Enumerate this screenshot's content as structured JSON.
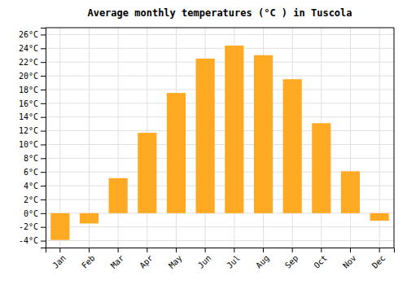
{
  "chart_data": {
    "type": "bar",
    "title": "Average monthly temperatures (°C ) in Tuscola",
    "categories": [
      "Jan",
      "Feb",
      "Mar",
      "Apr",
      "May",
      "Jun",
      "Jul",
      "Aug",
      "Sep",
      "Oct",
      "Nov",
      "Dec"
    ],
    "values": [
      -3.9,
      -1.5,
      5.1,
      11.7,
      17.5,
      22.5,
      24.4,
      23.0,
      19.5,
      13.1,
      6.1,
      -1.1
    ],
    "color": "#FFAA22",
    "ylim": [
      -5,
      27
    ],
    "yticks": [
      {
        "value": -4,
        "label": "-4°C"
      },
      {
        "value": -2,
        "label": "-2°C"
      },
      {
        "value": 0,
        "label": "0°C"
      },
      {
        "value": 2,
        "label": "2°C"
      },
      {
        "value": 4,
        "label": "4°C"
      },
      {
        "value": 6,
        "label": "6°C"
      },
      {
        "value": 8,
        "label": "8°C"
      },
      {
        "value": 10,
        "label": "10°C"
      },
      {
        "value": 12,
        "label": "12°C"
      },
      {
        "value": 14,
        "label": "14°C"
      },
      {
        "value": 16,
        "label": "16°C"
      },
      {
        "value": 18,
        "label": "18°C"
      },
      {
        "value": 20,
        "label": "20°C"
      },
      {
        "value": 22,
        "label": "22°C"
      },
      {
        "value": 24,
        "label": "24°C"
      },
      {
        "value": 26,
        "label": "26°C"
      }
    ],
    "grid": true
  }
}
